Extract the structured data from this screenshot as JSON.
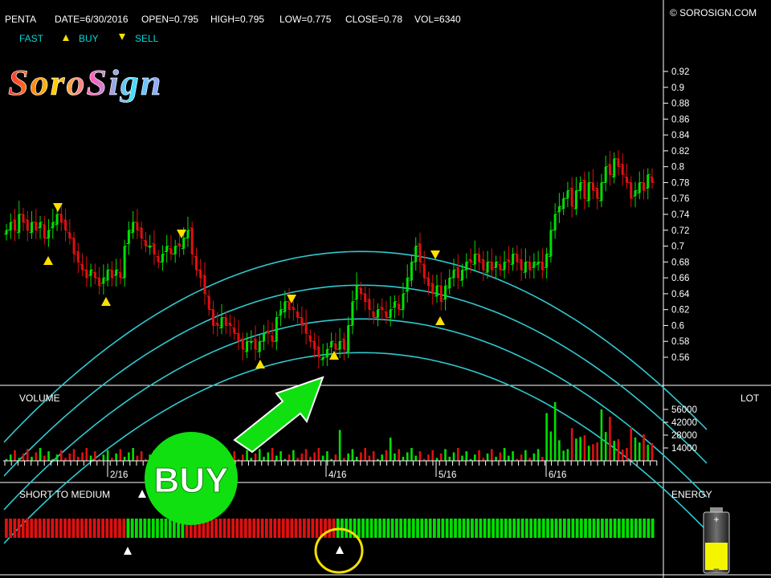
{
  "header": {
    "symbol": "PENTA",
    "date": "DATE=6/30/2016",
    "open": "OPEN=0.795",
    "high": "HIGH=0.795",
    "low": "LOW=0.775",
    "close": "CLOSE=0.78",
    "vol": "VOL=6340",
    "copyright": "© SOROSIGN.COM"
  },
  "legend": {
    "fast": "FAST",
    "buy": "BUY",
    "sell": "SELL"
  },
  "logo": {
    "text": "SoroSign"
  },
  "annotation": {
    "buy_label": "BUY"
  },
  "panels": {
    "volume_label": "VOLUME",
    "lot_label": "LOT",
    "short_medium_label": "SHORT TO MEDIUM",
    "energy_label": "ENERGY"
  },
  "colors": {
    "up": "#00e000",
    "down": "#e01010",
    "channel": "#30c8d0",
    "signal": "#ffe000",
    "arrow": "#10e010",
    "battery": "#f0f000"
  },
  "chart_data": [
    {
      "type": "candlestick",
      "ylim": [
        0.54,
        0.94
      ],
      "yticks": [
        0.56,
        0.58,
        0.6,
        0.62,
        0.64,
        0.66,
        0.68,
        0.7,
        0.72,
        0.74,
        0.76,
        0.78,
        0.8,
        0.82,
        0.84,
        0.86,
        0.88,
        0.9,
        0.92
      ],
      "xticks": [
        "2/16",
        "4/16",
        "5/16",
        "6/16"
      ],
      "close_series": [
        0.72,
        0.73,
        0.72,
        0.74,
        0.73,
        0.72,
        0.73,
        0.72,
        0.73,
        0.71,
        0.72,
        0.73,
        0.74,
        0.73,
        0.72,
        0.71,
        0.69,
        0.68,
        0.67,
        0.66,
        0.67,
        0.66,
        0.65,
        0.66,
        0.67,
        0.66,
        0.67,
        0.66,
        0.7,
        0.72,
        0.73,
        0.72,
        0.71,
        0.7,
        0.7,
        0.69,
        0.68,
        0.69,
        0.7,
        0.69,
        0.7,
        0.7,
        0.71,
        0.72,
        0.69,
        0.67,
        0.66,
        0.64,
        0.62,
        0.6,
        0.6,
        0.61,
        0.6,
        0.6,
        0.59,
        0.58,
        0.57,
        0.58,
        0.58,
        0.57,
        0.58,
        0.59,
        0.59,
        0.58,
        0.61,
        0.62,
        0.63,
        0.62,
        0.62,
        0.61,
        0.6,
        0.59,
        0.58,
        0.57,
        0.56,
        0.56,
        0.57,
        0.58,
        0.57,
        0.58,
        0.57,
        0.6,
        0.63,
        0.65,
        0.64,
        0.63,
        0.62,
        0.61,
        0.62,
        0.62,
        0.61,
        0.62,
        0.63,
        0.62,
        0.64,
        0.66,
        0.68,
        0.7,
        0.68,
        0.66,
        0.65,
        0.64,
        0.65,
        0.63,
        0.65,
        0.66,
        0.67,
        0.66,
        0.67,
        0.68,
        0.68,
        0.69,
        0.68,
        0.67,
        0.68,
        0.67,
        0.68,
        0.67,
        0.68,
        0.68,
        0.69,
        0.68,
        0.67,
        0.68,
        0.67,
        0.68,
        0.68,
        0.67,
        0.69,
        0.72,
        0.74,
        0.75,
        0.76,
        0.77,
        0.75,
        0.77,
        0.78,
        0.76,
        0.78,
        0.77,
        0.76,
        0.78,
        0.8,
        0.79,
        0.81,
        0.8,
        0.79,
        0.78,
        0.76,
        0.77,
        0.78,
        0.77,
        0.79,
        0.78
      ],
      "channel_lines": 4
    },
    {
      "type": "bar",
      "name": "VOLUME",
      "yticks": [
        14000,
        28000,
        42000,
        56000
      ]
    },
    {
      "type": "heatmap",
      "name": "SHORT TO MEDIUM",
      "segments": [
        {
          "color": "red",
          "count": 29
        },
        {
          "color": "green",
          "count": 14
        },
        {
          "color": "red",
          "count": 36
        },
        {
          "color": "green",
          "count": 76
        }
      ]
    }
  ]
}
